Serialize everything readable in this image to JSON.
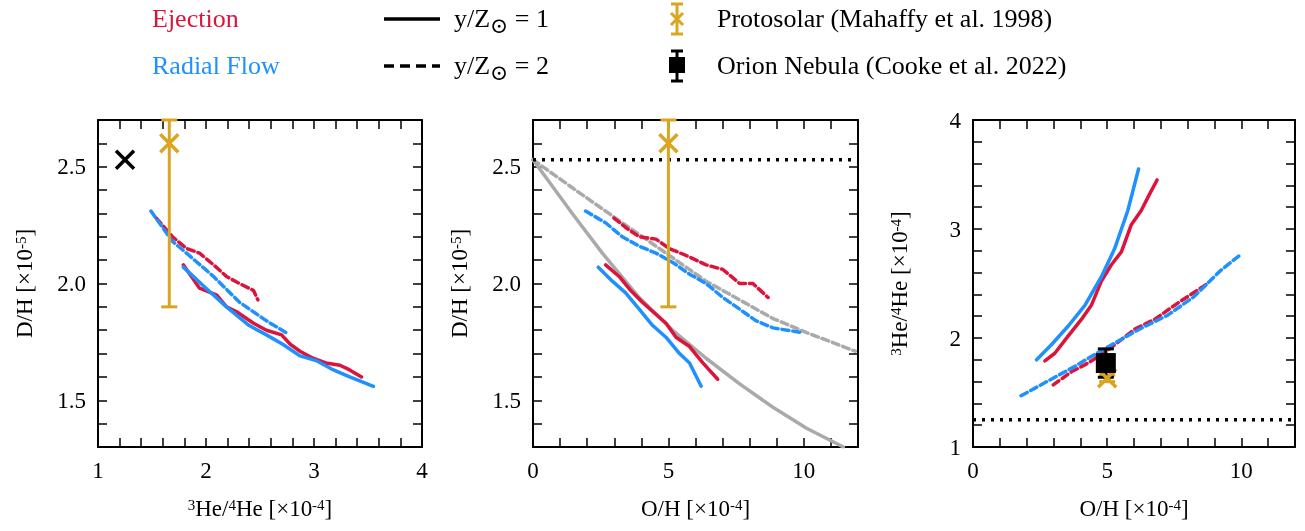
{
  "chart_data": [
    {
      "type": "other",
      "annotations": [
        "Ejection",
        "Radial Flow",
        "y/Z$_{⊙}$ = 1",
        "y/Z$_{⊙}$ = 2",
        "Protosolar (Mahaffy et al. 1998)",
        "Orion Nebula (Cooke et al. 2022)"
      ]
    },
    {
      "type": "line",
      "xlabel": "$^{3}$He/$^{4}$He [×10$^{-4}$]",
      "ylabel": "D/H [×10$^{-5}$]",
      "xlim": [
        1,
        4
      ],
      "xticks": [
        {
          "value": 1,
          "label": "1"
        },
        {
          "value": 1.2,
          "label": null
        },
        {
          "value": 1.4,
          "label": null
        },
        {
          "value": 1.6,
          "label": null
        },
        {
          "value": 1.8,
          "label": null
        },
        {
          "value": 2,
          "label": "2"
        },
        {
          "value": 2.2,
          "label": null
        },
        {
          "value": 2.4,
          "label": null
        },
        {
          "value": 2.6,
          "label": null
        },
        {
          "value": 2.8,
          "label": null
        },
        {
          "value": 3,
          "label": "3"
        },
        {
          "value": 3.2,
          "label": null
        },
        {
          "value": 3.4,
          "label": null
        },
        {
          "value": 3.6,
          "label": null
        },
        {
          "value": 3.8,
          "label": null
        },
        {
          "value": 4,
          "label": "4"
        }
      ],
      "ylim": [
        1.3,
        2.7
      ],
      "yticks": [
        {
          "value": 1.4,
          "label": null
        },
        {
          "value": 1.5,
          "label": "1.5"
        },
        {
          "value": 1.6,
          "label": null
        },
        {
          "value": 1.7,
          "label": null
        },
        {
          "value": 1.8,
          "label": null
        },
        {
          "value": 1.9,
          "label": null
        },
        {
          "value": 2,
          "label": "2.0"
        },
        {
          "value": 2.1,
          "label": null
        },
        {
          "value": 2.2,
          "label": null
        },
        {
          "value": 2.3,
          "label": null
        },
        {
          "value": 2.4,
          "label": null
        },
        {
          "value": 2.5,
          "label": "2.5"
        },
        {
          "value": 2.6,
          "label": null
        }
      ],
      "series": [
        {
          "color": "#dc143c",
          "line_style": "solid",
          "x": [
            1.79,
            1.94,
            2.1,
            2.19,
            2.28,
            2.44,
            2.56,
            2.7,
            2.78,
            2.87,
            2.99,
            3.11,
            3.24,
            3.33,
            3.44
          ],
          "values": [
            2.08,
            1.98,
            1.95,
            1.9,
            1.88,
            1.83,
            1.8,
            1.78,
            1.74,
            1.71,
            1.68,
            1.66,
            1.65,
            1.63,
            1.6
          ]
        },
        {
          "color": "#1e90ff",
          "line_style": "solid",
          "x": [
            1.79,
            2.0,
            2.19,
            2.4,
            2.56,
            2.71,
            2.87,
            3.02,
            3.18,
            3.33,
            3.55
          ],
          "values": [
            2.07,
            1.98,
            1.9,
            1.82,
            1.78,
            1.74,
            1.69,
            1.67,
            1.63,
            1.6,
            1.56
          ]
        },
        {
          "color": "#dc143c",
          "line_style": "dashed",
          "x": [
            1.54,
            1.69,
            1.82,
            1.94,
            2.07,
            2.19,
            2.31,
            2.44,
            2.48
          ],
          "values": [
            2.28,
            2.2,
            2.15,
            2.13,
            2.08,
            2.03,
            2.0,
            1.97,
            1.93
          ]
        },
        {
          "color": "#1e90ff",
          "line_style": "dashed",
          "x": [
            1.49,
            1.69,
            1.82,
            2.07,
            2.31,
            2.56,
            2.74
          ],
          "values": [
            2.31,
            2.18,
            2.13,
            2.03,
            1.92,
            1.84,
            1.79
          ]
        },
        {
          "type": "scatter",
          "marker": "cross",
          "color": "#daa520",
          "x": [
            1.66
          ],
          "values": [
            2.6
          ],
          "errors": [
            [
              1.9,
              2.7
            ]
          ]
        },
        {
          "type": "scatter",
          "marker": "cross",
          "color": "#000000",
          "x": [
            1.25
          ],
          "values": [
            2.53
          ]
        }
      ]
    },
    {
      "type": "line",
      "xlabel": "O/H [×10$^{-4}$]",
      "ylabel": "D/H [×10$^{-5}$]",
      "xlim": [
        0,
        12
      ],
      "xticks": [
        {
          "value": 0,
          "label": "0"
        },
        {
          "value": 1,
          "label": null
        },
        {
          "value": 2,
          "label": null
        },
        {
          "value": 3,
          "label": null
        },
        {
          "value": 4,
          "label": null
        },
        {
          "value": 5,
          "label": "5"
        },
        {
          "value": 6,
          "label": null
        },
        {
          "value": 7,
          "label": null
        },
        {
          "value": 8,
          "label": null
        },
        {
          "value": 9,
          "label": null
        },
        {
          "value": 10,
          "label": "10"
        },
        {
          "value": 11,
          "label": null
        }
      ],
      "ylim": [
        1.3,
        2.7
      ],
      "yticks": [
        {
          "value": 1.4,
          "label": null
        },
        {
          "value": 1.5,
          "label": "1.5"
        },
        {
          "value": 1.6,
          "label": null
        },
        {
          "value": 1.7,
          "label": null
        },
        {
          "value": 1.8,
          "label": null
        },
        {
          "value": 1.9,
          "label": null
        },
        {
          "value": 2,
          "label": "2.0"
        },
        {
          "value": 2.1,
          "label": null
        },
        {
          "value": 2.2,
          "label": null
        },
        {
          "value": 2.3,
          "label": null
        },
        {
          "value": 2.4,
          "label": null
        },
        {
          "value": 2.5,
          "label": "2.5"
        },
        {
          "value": 2.6,
          "label": null
        }
      ],
      "ref_lines": [
        {
          "axis": "y",
          "value": 2.53,
          "color": "#000000",
          "line_style": "dotted"
        }
      ],
      "series": [
        {
          "color": "#dc143c",
          "line_style": "solid",
          "x": [
            2.68,
            3.18,
            3.61,
            4.04,
            4.42,
            4.91,
            5.28,
            5.78,
            6.27,
            6.82
          ],
          "values": [
            2.08,
            2.03,
            1.97,
            1.92,
            1.88,
            1.83,
            1.77,
            1.73,
            1.66,
            1.59
          ]
        },
        {
          "color": "#1e90ff",
          "line_style": "solid",
          "x": [
            2.41,
            2.93,
            3.42,
            3.92,
            4.42,
            4.91,
            5.41,
            5.78,
            6.21
          ],
          "values": [
            2.07,
            2.01,
            1.96,
            1.89,
            1.82,
            1.77,
            1.7,
            1.66,
            1.56
          ]
        },
        {
          "color": "#dc143c",
          "line_style": "dashed",
          "x": [
            2.99,
            3.42,
            3.92,
            4.54,
            5.03,
            5.65,
            6.39,
            7.01,
            7.63,
            8.12,
            8.68
          ],
          "values": [
            2.28,
            2.24,
            2.2,
            2.19,
            2.15,
            2.12,
            2.08,
            2.06,
            2.0,
            2.0,
            1.94
          ]
        },
        {
          "color": "#1e90ff",
          "line_style": "dashed",
          "x": [
            1.94,
            2.68,
            3.3,
            3.92,
            4.54,
            5.16,
            5.78,
            6.39,
            7.01,
            7.63,
            8.24,
            8.86,
            9.91
          ],
          "values": [
            2.31,
            2.26,
            2.2,
            2.16,
            2.13,
            2.09,
            2.04,
            2.0,
            1.94,
            1.89,
            1.84,
            1.81,
            1.79
          ]
        },
        {
          "color": "#aaaaaa",
          "line_style": "solid",
          "x": [
            0,
            1.45,
            2.56,
            3.92,
            5.16,
            6.39,
            7.63,
            8.86,
            10.1,
            11.46
          ],
          "values": [
            2.53,
            2.3,
            2.13,
            1.94,
            1.8,
            1.68,
            1.57,
            1.47,
            1.38,
            1.3
          ]
        },
        {
          "color": "#aaaaaa",
          "line_style": "dashed",
          "x": [
            0,
            1.45,
            2.68,
            3.92,
            5.16,
            6.39,
            7.63,
            8.86,
            10.1,
            11.9
          ],
          "values": [
            2.53,
            2.41,
            2.31,
            2.21,
            2.11,
            2.01,
            1.93,
            1.85,
            1.79,
            1.71
          ]
        },
        {
          "type": "scatter",
          "marker": "cross",
          "color": "#daa520",
          "x": [
            5
          ],
          "values": [
            2.6
          ],
          "errors": [
            [
              1.9,
              2.7
            ]
          ]
        }
      ]
    },
    {
      "type": "line",
      "xlabel": "O/H [×10$^{-4}$]",
      "ylabel": "$^{3}$He/$^{4}$He [×10$^{-4}$]",
      "xlim": [
        0,
        12
      ],
      "xticks": [
        {
          "value": 0,
          "label": "0"
        },
        {
          "value": 1,
          "label": null
        },
        {
          "value": 2,
          "label": null
        },
        {
          "value": 3,
          "label": null
        },
        {
          "value": 4,
          "label": null
        },
        {
          "value": 5,
          "label": "5"
        },
        {
          "value": 6,
          "label": null
        },
        {
          "value": 7,
          "label": null
        },
        {
          "value": 8,
          "label": null
        },
        {
          "value": 9,
          "label": null
        },
        {
          "value": 10,
          "label": "10"
        },
        {
          "value": 11,
          "label": null
        }
      ],
      "ylim": [
        1,
        4
      ],
      "yticks": [
        {
          "value": 1,
          "label": "1"
        },
        {
          "value": 1.2,
          "label": null
        },
        {
          "value": 1.4,
          "label": null
        },
        {
          "value": 1.6,
          "label": null
        },
        {
          "value": 1.8,
          "label": null
        },
        {
          "value": 2,
          "label": "2"
        },
        {
          "value": 2.2,
          "label": null
        },
        {
          "value": 2.4,
          "label": null
        },
        {
          "value": 2.6,
          "label": null
        },
        {
          "value": 2.8,
          "label": null
        },
        {
          "value": 3,
          "label": "3"
        },
        {
          "value": 3.2,
          "label": null
        },
        {
          "value": 3.4,
          "label": null
        },
        {
          "value": 3.6,
          "label": null
        },
        {
          "value": 3.8,
          "label": null
        },
        {
          "value": 4,
          "label": "4"
        }
      ],
      "ref_lines": [
        {
          "axis": "y",
          "value": 1.25,
          "color": "#000000",
          "line_style": "dotted"
        }
      ],
      "series": [
        {
          "color": "#dc143c",
          "line_style": "solid",
          "x": [
            2.68,
            3.05,
            3.55,
            4.04,
            4.41,
            4.78,
            5.15,
            5.53,
            5.9,
            6.27,
            6.58,
            6.86
          ],
          "values": [
            1.79,
            1.86,
            2.02,
            2.17,
            2.3,
            2.52,
            2.67,
            2.79,
            3.04,
            3.17,
            3.32,
            3.45
          ]
        },
        {
          "color": "#1e90ff",
          "line_style": "solid",
          "x": [
            2.37,
            2.93,
            3.55,
            4.17,
            4.78,
            5.28,
            5.77,
            6.17
          ],
          "values": [
            1.8,
            1.94,
            2.11,
            2.3,
            2.56,
            2.82,
            3.17,
            3.55
          ]
        },
        {
          "color": "#dc143c",
          "line_style": "dashed",
          "x": [
            2.99,
            3.67,
            4.29,
            5.03,
            6.02,
            6.76,
            7.63,
            8.68
          ],
          "values": [
            1.57,
            1.69,
            1.77,
            1.89,
            2.08,
            2.17,
            2.32,
            2.49
          ]
        },
        {
          "color": "#1e90ff",
          "line_style": "dashed",
          "x": [
            1.79,
            2.31,
            3.05,
            3.8,
            4.54,
            5.4,
            6.27,
            7.26,
            8.24,
            9.23,
            9.95
          ],
          "values": [
            1.47,
            1.54,
            1.64,
            1.74,
            1.85,
            1.97,
            2.09,
            2.21,
            2.38,
            2.62,
            2.76
          ]
        },
        {
          "type": "scatter",
          "marker": "cross",
          "color": "#daa520",
          "x": [
            5
          ],
          "values": [
            1.63
          ],
          "errors": [
            0.03
          ]
        },
        {
          "type": "scatter",
          "marker": "square",
          "color": "#000000",
          "x": [
            4.95
          ],
          "values": [
            1.77
          ],
          "errors": [
            0.13
          ]
        }
      ]
    }
  ]
}
